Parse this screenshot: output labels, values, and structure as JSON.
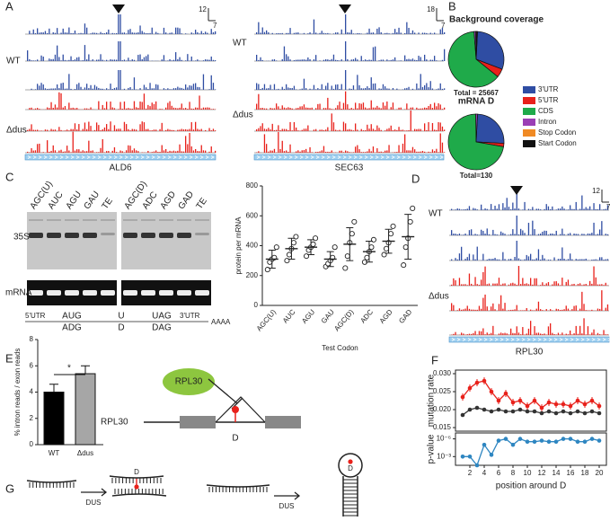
{
  "panel_labels": [
    "A",
    "B",
    "C",
    "D",
    "E",
    "F",
    "G"
  ],
  "tracks": {
    "groups": [
      "WT",
      "Δdus"
    ],
    "genes": [
      "ALD6",
      "SEC63",
      "RPL30"
    ],
    "scale_bars": [
      {
        "y": 12,
        "x": 7
      },
      {
        "y": 18,
        "x": 7
      },
      {
        "y": 12,
        "x": 7
      }
    ]
  },
  "gel": {
    "lanes_left": [
      "AGC(U)",
      "AUC",
      "AGU",
      "GAU",
      "TE"
    ],
    "lanes_right": [
      "AGC(D)",
      "ADC",
      "AGD",
      "GAD",
      "TE"
    ],
    "label_35s": "35S",
    "label_mrna": "mRNA"
  },
  "sequence": {
    "utr5": "5'UTR",
    "start": "AUG",
    "start_d": "ADG",
    "mid": "U",
    "mid_d": "D",
    "stop": "UAG",
    "stop_d": "DAG",
    "utr3": "3'UTR",
    "tail": "AAAA"
  },
  "diagram_e": {
    "protein": "RPL30",
    "gene": "RPL30",
    "mod": "D"
  },
  "diagram_g": {
    "enzyme": [
      "DUS",
      "DUS"
    ],
    "mod": [
      "D",
      "D"
    ]
  },
  "chart_data": [
    {
      "type": "pie",
      "title": "Background coverage",
      "subtitle": "mRNA D",
      "categories": [
        "3'UTR",
        "5'UTR",
        "CDS",
        "Intron",
        "Stop Codon",
        "Start Codon"
      ],
      "colors": [
        "#2f4da3",
        "#e8211b",
        "#1faa4a",
        "#9b3fb5",
        "#f08a24",
        "#111111"
      ],
      "pies": [
        {
          "values": [
            30,
            5,
            63,
            1,
            0.5,
            0.5
          ],
          "total_label": "Total = 25667"
        },
        {
          "values": [
            25,
            2,
            72,
            1,
            0,
            0
          ],
          "total_label": "Total=130"
        }
      ]
    },
    {
      "type": "dot",
      "ylabel": "protein per mRNA",
      "xlabel": "Test Codon",
      "categories": [
        "AGC(U)",
        "AUC",
        "AGU",
        "GAU",
        "AGC(D)",
        "ADC",
        "AGD",
        "GAD"
      ],
      "means": [
        310,
        380,
        390,
        310,
        410,
        360,
        430,
        460
      ],
      "errors": [
        60,
        70,
        50,
        50,
        110,
        70,
        80,
        150
      ],
      "points": [
        [
          240,
          290,
          310,
          320,
          390
        ],
        [
          300,
          340,
          380,
          420,
          460
        ],
        [
          330,
          370,
          390,
          410,
          450
        ],
        [
          260,
          280,
          300,
          320,
          390
        ],
        [
          250,
          330,
          420,
          480,
          560
        ],
        [
          290,
          320,
          360,
          390,
          440
        ],
        [
          340,
          380,
          420,
          480,
          530
        ],
        [
          270,
          390,
          450,
          560,
          650
        ]
      ],
      "ylim": [
        0,
        800
      ],
      "yticks": [
        0,
        200,
        400,
        600,
        800
      ]
    },
    {
      "type": "bar",
      "ylabel": "% intron reads / exon reads",
      "categories": [
        "WT",
        "Δdus"
      ],
      "values": [
        4,
        5.4
      ],
      "errors": [
        0.6,
        0.6
      ],
      "colors": [
        "#000000",
        "#a6a6a6"
      ],
      "annotation": "*",
      "ylim": [
        0,
        8
      ],
      "yticks": [
        0,
        2,
        4,
        6,
        8
      ]
    },
    {
      "type": "line",
      "ylabel": "mutation rate",
      "x": [
        1,
        2,
        3,
        4,
        5,
        6,
        7,
        8,
        9,
        10,
        11,
        12,
        13,
        14,
        15,
        16,
        17,
        18,
        19,
        20
      ],
      "xlim": [
        0,
        21
      ],
      "ylim": [
        0.014,
        0.031
      ],
      "yticks": [
        0.015,
        {
          "value": 0.02,
          "label": "0.020"
        },
        0.025,
        {
          "value": 0.03,
          "label": "0.030"
        }
      ],
      "series": [
        {
          "color": "#e8211b",
          "values": [
            0.0235,
            0.026,
            0.0275,
            0.028,
            0.025,
            0.0225,
            0.0245,
            0.022,
            0.0225,
            0.021,
            0.0225,
            0.0205,
            0.022,
            0.0215,
            0.0215,
            0.021,
            0.0225,
            0.0215,
            0.0225,
            0.021
          ]
        },
        {
          "color": "#333333",
          "values": [
            0.0185,
            0.02,
            0.0205,
            0.02,
            0.0195,
            0.02,
            0.0195,
            0.0195,
            0.02,
            0.0195,
            0.0195,
            0.019,
            0.0195,
            0.019,
            0.0195,
            0.019,
            0.0195,
            0.019,
            0.0195,
            0.019
          ]
        }
      ]
    },
    {
      "type": "line",
      "ylabel": "p-value",
      "xlabel": "position around D",
      "log": true,
      "x": [
        1,
        2,
        3,
        4,
        5,
        6,
        7,
        8,
        9,
        10,
        11,
        12,
        13,
        14,
        15,
        16,
        17,
        18,
        19,
        20
      ],
      "xlim": [
        0,
        21
      ],
      "xticks": [
        2,
        4,
        6,
        8,
        10,
        12,
        14,
        16,
        18,
        20
      ],
      "ylim": [
        0.03,
        1e-07
      ],
      "yticks": [
        {
          "value": 1e-06,
          "label": "10⁻⁶"
        },
        {
          "value": 0.001,
          "label": "10⁻³"
        }
      ],
      "series": [
        {
          "color": "#2e86c1",
          "values": [
            0.001,
            0.001,
            0.03,
            1e-05,
            0.0005,
            2e-06,
            1e-06,
            1e-05,
            1e-06,
            3e-06,
            3e-06,
            2e-06,
            3e-06,
            3e-06,
            1e-06,
            1e-06,
            3e-06,
            3e-06,
            1e-06,
            2e-06
          ]
        }
      ]
    }
  ]
}
